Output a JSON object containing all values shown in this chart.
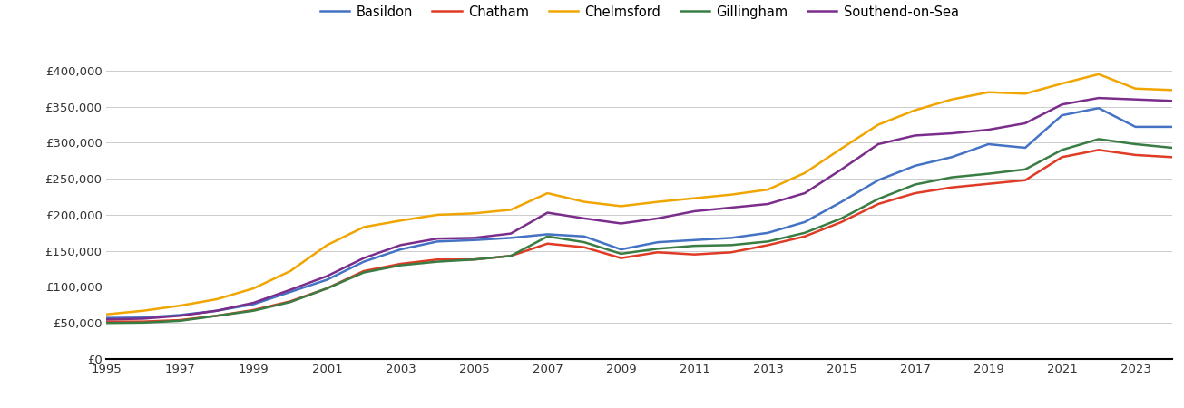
{
  "years": [
    1995,
    1996,
    1997,
    1998,
    1999,
    2000,
    2001,
    2002,
    2003,
    2004,
    2005,
    2006,
    2007,
    2008,
    2009,
    2010,
    2011,
    2012,
    2013,
    2014,
    2015,
    2016,
    2017,
    2018,
    2019,
    2020,
    2021,
    2022,
    2023,
    2024
  ],
  "Basildon": [
    57000,
    57500,
    61000,
    67000,
    76000,
    93000,
    110000,
    135000,
    152000,
    163000,
    165000,
    168000,
    173000,
    170000,
    152000,
    162000,
    165000,
    168000,
    175000,
    190000,
    218000,
    248000,
    268000,
    280000,
    298000,
    293000,
    338000,
    348000,
    322000,
    322000
  ],
  "Chatham": [
    52000,
    52000,
    54000,
    60000,
    68000,
    80000,
    98000,
    122000,
    132000,
    138000,
    138000,
    143000,
    160000,
    155000,
    140000,
    148000,
    145000,
    148000,
    158000,
    170000,
    190000,
    215000,
    230000,
    238000,
    243000,
    248000,
    280000,
    290000,
    283000,
    280000
  ],
  "Chelmsford": [
    62000,
    67000,
    74000,
    83000,
    98000,
    122000,
    158000,
    183000,
    192000,
    200000,
    202000,
    207000,
    230000,
    218000,
    212000,
    218000,
    223000,
    228000,
    235000,
    258000,
    292000,
    325000,
    345000,
    360000,
    370000,
    368000,
    382000,
    395000,
    375000,
    373000
  ],
  "Gillingham": [
    50000,
    50500,
    53000,
    60000,
    67000,
    79000,
    98000,
    120000,
    130000,
    135000,
    138000,
    143000,
    170000,
    162000,
    146000,
    153000,
    157000,
    158000,
    163000,
    175000,
    195000,
    222000,
    242000,
    252000,
    257000,
    263000,
    290000,
    305000,
    298000,
    293000
  ],
  "Southend-on-Sea": [
    55000,
    56000,
    60000,
    67000,
    78000,
    96000,
    115000,
    140000,
    158000,
    167000,
    168000,
    174000,
    203000,
    195000,
    188000,
    195000,
    205000,
    210000,
    215000,
    230000,
    263000,
    298000,
    310000,
    313000,
    318000,
    327000,
    353000,
    362000,
    360000,
    358000
  ],
  "colors": {
    "Basildon": "#4472c4",
    "Chatham": "#e03b24",
    "Chelmsford": "#f0a500",
    "Gillingham": "#3a7d44",
    "Southend-on-Sea": "#7b2d8b"
  },
  "ylim": [
    0,
    430000
  ],
  "yticks": [
    0,
    50000,
    100000,
    150000,
    200000,
    250000,
    300000,
    350000,
    400000
  ],
  "xtick_start": 1995,
  "xtick_end": 2024,
  "xtick_step": 2,
  "background_color": "#ffffff",
  "grid_color": "#cccccc",
  "linewidth": 1.8
}
